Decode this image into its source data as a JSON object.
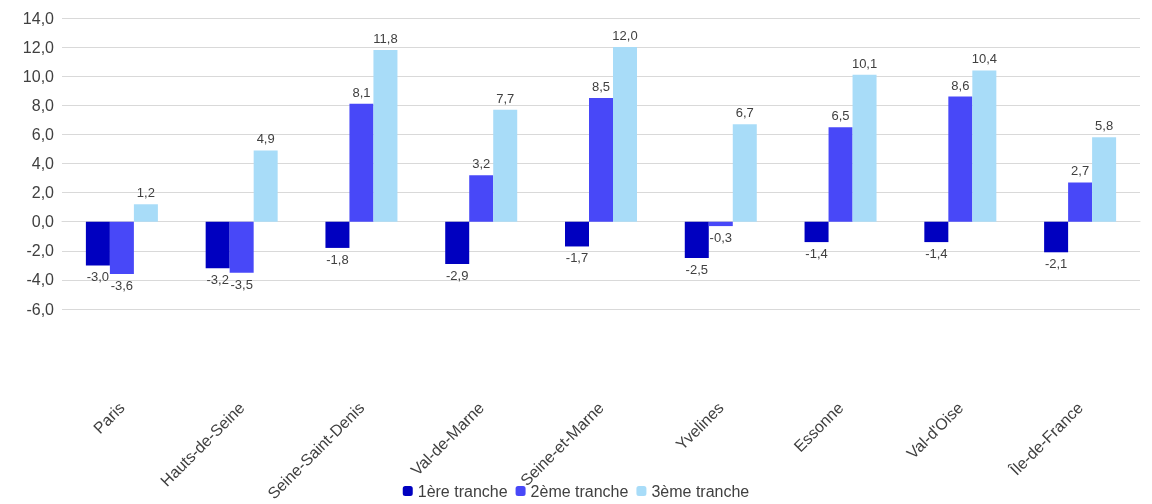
{
  "chart_data": {
    "type": "bar",
    "categories": [
      "Paris",
      "Hauts-de-Seine",
      "Seine-Saint-Denis",
      "Val-de-Marne",
      "Seine-et-Marne",
      "Yvelines",
      "Essonne",
      "Val-d'Oise",
      "Île-de-France"
    ],
    "series": [
      {
        "name": "1ère tranche",
        "color": "#0000c0",
        "values": [
          -3.0,
          -3.2,
          -1.8,
          -2.9,
          -1.7,
          -2.5,
          -1.4,
          -1.4,
          -2.1
        ],
        "value_labels": [
          "-3,0",
          "-3,2",
          "-1,8",
          "-2,9",
          "-1,7",
          "-2,5",
          "-1,4",
          "-1,4",
          "-2,1"
        ]
      },
      {
        "name": "2ème tranche",
        "color": "#4848f8",
        "values": [
          -3.6,
          -3.5,
          8.1,
          3.2,
          8.5,
          -0.3,
          6.5,
          8.6,
          2.7
        ],
        "value_labels": [
          "-3,6",
          "-3,5",
          "8,1",
          "3,2",
          "8,5",
          "-0,3",
          "6,5",
          "8,6",
          "2,7"
        ]
      },
      {
        "name": "3ème tranche",
        "color": "#a8dcf8",
        "values": [
          1.2,
          4.9,
          11.8,
          7.7,
          12.0,
          6.7,
          10.1,
          10.4,
          5.8
        ],
        "value_labels": [
          "1,2",
          "4,9",
          "11,8",
          "7,7",
          "12,0",
          "6,7",
          "10,1",
          "10,4",
          "5,8"
        ]
      }
    ],
    "ylim": [
      -6,
      14
    ],
    "yticks": [
      {
        "value": -6,
        "label": "-6,0"
      },
      {
        "value": -4,
        "label": "-4,0"
      },
      {
        "value": -2,
        "label": "-2,0"
      },
      {
        "value": 0,
        "label": "0,0"
      },
      {
        "value": 2,
        "label": "2,0"
      },
      {
        "value": 4,
        "label": "4,0"
      },
      {
        "value": 6,
        "label": "6,0"
      },
      {
        "value": 8,
        "label": "8,0"
      },
      {
        "value": 10,
        "label": "10,0"
      },
      {
        "value": 12,
        "label": "12,0"
      },
      {
        "value": 14,
        "label": "14,0"
      }
    ],
    "grid": "y",
    "legend": "bottom"
  }
}
